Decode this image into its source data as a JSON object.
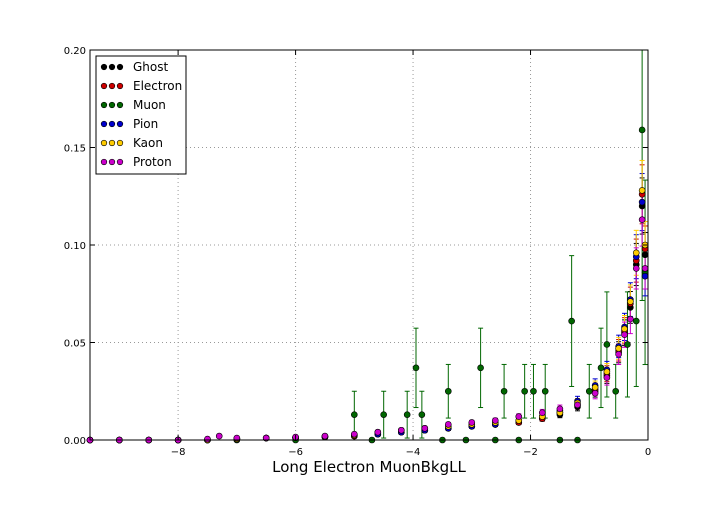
{
  "chart_data": {
    "type": "scatter",
    "title": "",
    "xlabel": "Long Electron MuonBkgLL",
    "ylabel": "",
    "xlim": [
      -9.5,
      0
    ],
    "ylim": [
      0,
      0.2
    ],
    "x_ticks": [
      -8,
      -6,
      -4,
      -2,
      0
    ],
    "x_tick_labels": [
      "−8",
      "−6",
      "−4",
      "−2",
      "0"
    ],
    "y_ticks": [
      0,
      0.05,
      0.1,
      0.15,
      0.2
    ],
    "y_tick_labels": [
      "0.00",
      "0.05",
      "0.10",
      "0.15",
      "0.20"
    ],
    "grid": true,
    "legend_position": "top-left",
    "series": [
      {
        "name": "Ghost",
        "color": "#000000",
        "points": [
          [
            -9.5,
            0
          ],
          [
            -9.0,
            0
          ],
          [
            -8.5,
            0
          ],
          [
            -8.0,
            0
          ],
          [
            -7.5,
            0
          ],
          [
            -7.0,
            0.0005
          ],
          [
            -6.5,
            0.001
          ],
          [
            -6.0,
            0.001
          ],
          [
            -5.5,
            0.0015
          ],
          [
            -5.0,
            0.002
          ],
          [
            -4.6,
            0.003
          ],
          [
            -4.2,
            0.004
          ],
          [
            -3.8,
            0.005
          ],
          [
            -3.4,
            0.006
          ],
          [
            -3.0,
            0.007
          ],
          [
            -2.6,
            0.008
          ],
          [
            -2.2,
            0.009
          ],
          [
            -1.8,
            0.011
          ],
          [
            -1.5,
            0.013
          ],
          [
            -1.2,
            0.017
          ],
          [
            -0.9,
            0.025
          ],
          [
            -0.7,
            0.033
          ],
          [
            -0.5,
            0.045
          ],
          [
            -0.4,
            0.055
          ],
          [
            -0.3,
            0.068
          ],
          [
            -0.2,
            0.09
          ],
          [
            -0.1,
            0.12
          ],
          [
            -0.05,
            0.095
          ]
        ]
      },
      {
        "name": "Electron",
        "color": "#cc0000",
        "points": [
          [
            -9.5,
            0
          ],
          [
            -9.0,
            0
          ],
          [
            -8.5,
            0
          ],
          [
            -8.0,
            0
          ],
          [
            -7.5,
            0
          ],
          [
            -7.0,
            0.0005
          ],
          [
            -6.5,
            0.001
          ],
          [
            -6.0,
            0.0012
          ],
          [
            -5.5,
            0.0015
          ],
          [
            -5.0,
            0.002
          ],
          [
            -4.6,
            0.003
          ],
          [
            -4.2,
            0.004
          ],
          [
            -3.8,
            0.005
          ],
          [
            -3.4,
            0.006
          ],
          [
            -3.0,
            0.007
          ],
          [
            -2.6,
            0.008
          ],
          [
            -2.2,
            0.009
          ],
          [
            -1.8,
            0.011
          ],
          [
            -1.5,
            0.014
          ],
          [
            -1.2,
            0.018
          ],
          [
            -0.9,
            0.026
          ],
          [
            -0.7,
            0.034
          ],
          [
            -0.5,
            0.046
          ],
          [
            -0.4,
            0.056
          ],
          [
            -0.3,
            0.07
          ],
          [
            -0.2,
            0.092
          ],
          [
            -0.1,
            0.126
          ],
          [
            -0.05,
            0.098
          ]
        ]
      },
      {
        "name": "Muon",
        "color": "#006600",
        "points": [
          [
            -9.0,
            0
          ],
          [
            -8.0,
            0
          ],
          [
            -7.0,
            0
          ],
          [
            -6.0,
            0
          ],
          [
            -5.0,
            0.013
          ],
          [
            -4.7,
            0
          ],
          [
            -4.5,
            0.013
          ],
          [
            -4.1,
            0.013
          ],
          [
            -3.95,
            0.037
          ],
          [
            -3.85,
            0.013
          ],
          [
            -3.5,
            0
          ],
          [
            -3.4,
            0.025
          ],
          [
            -3.1,
            0
          ],
          [
            -2.85,
            0.037
          ],
          [
            -2.6,
            0
          ],
          [
            -2.45,
            0.025
          ],
          [
            -2.2,
            0
          ],
          [
            -2.1,
            0.025
          ],
          [
            -1.95,
            0.025
          ],
          [
            -1.75,
            0.025
          ],
          [
            -1.5,
            0
          ],
          [
            -1.3,
            0.061
          ],
          [
            -1.2,
            0
          ],
          [
            -1.0,
            0.025
          ],
          [
            -0.8,
            0.037
          ],
          [
            -0.7,
            0.049
          ],
          [
            -0.55,
            0.025
          ],
          [
            -0.35,
            0.049
          ],
          [
            -0.2,
            0.061
          ],
          [
            -0.1,
            0.159
          ],
          [
            -0.05,
            0.086
          ]
        ]
      },
      {
        "name": "Pion",
        "color": "#0000cc",
        "points": [
          [
            -9.5,
            0
          ],
          [
            -9.0,
            0
          ],
          [
            -8.5,
            0
          ],
          [
            -8.0,
            0
          ],
          [
            -7.5,
            0
          ],
          [
            -7.0,
            0.0005
          ],
          [
            -6.5,
            0.001
          ],
          [
            -6.0,
            0.0012
          ],
          [
            -5.5,
            0.0018
          ],
          [
            -5.0,
            0.0025
          ],
          [
            -4.6,
            0.003
          ],
          [
            -4.2,
            0.004
          ],
          [
            -3.8,
            0.005
          ],
          [
            -3.4,
            0.006
          ],
          [
            -3.0,
            0.007
          ],
          [
            -2.6,
            0.008
          ],
          [
            -2.2,
            0.01
          ],
          [
            -1.8,
            0.012
          ],
          [
            -1.5,
            0.015
          ],
          [
            -1.2,
            0.02
          ],
          [
            -0.9,
            0.028
          ],
          [
            -0.7,
            0.036
          ],
          [
            -0.5,
            0.048
          ],
          [
            -0.4,
            0.058
          ],
          [
            -0.3,
            0.072
          ],
          [
            -0.2,
            0.094
          ],
          [
            -0.1,
            0.122
          ],
          [
            -0.05,
            0.084
          ]
        ]
      },
      {
        "name": "Kaon",
        "color": "#ffcc00",
        "points": [
          [
            -9.5,
            0
          ],
          [
            -9.0,
            0
          ],
          [
            -8.5,
            0
          ],
          [
            -8.0,
            0
          ],
          [
            -7.5,
            0
          ],
          [
            -7.0,
            0.0005
          ],
          [
            -6.5,
            0.001
          ],
          [
            -6.0,
            0.0012
          ],
          [
            -5.5,
            0.0018
          ],
          [
            -5.0,
            0.0025
          ],
          [
            -4.6,
            0.004
          ],
          [
            -4.2,
            0.005
          ],
          [
            -3.8,
            0.006
          ],
          [
            -3.4,
            0.007
          ],
          [
            -3.0,
            0.008
          ],
          [
            -2.6,
            0.009
          ],
          [
            -2.2,
            0.01
          ],
          [
            -1.8,
            0.012
          ],
          [
            -1.5,
            0.014
          ],
          [
            -1.2,
            0.019
          ],
          [
            -0.9,
            0.027
          ],
          [
            -0.7,
            0.035
          ],
          [
            -0.5,
            0.047
          ],
          [
            -0.4,
            0.057
          ],
          [
            -0.3,
            0.071
          ],
          [
            -0.2,
            0.096
          ],
          [
            -0.1,
            0.128
          ],
          [
            -0.05,
            0.1
          ]
        ]
      },
      {
        "name": "Proton",
        "color": "#cc00cc",
        "points": [
          [
            -9.5,
            0
          ],
          [
            -9.0,
            0
          ],
          [
            -8.5,
            0
          ],
          [
            -8.0,
            0
          ],
          [
            -7.5,
            0.0005
          ],
          [
            -7.3,
            0.002
          ],
          [
            -7.0,
            0.001
          ],
          [
            -6.5,
            0.001
          ],
          [
            -6.0,
            0.0015
          ],
          [
            -5.5,
            0.002
          ],
          [
            -5.0,
            0.003
          ],
          [
            -4.6,
            0.004
          ],
          [
            -4.2,
            0.005
          ],
          [
            -3.8,
            0.006
          ],
          [
            -3.4,
            0.008
          ],
          [
            -3.0,
            0.009
          ],
          [
            -2.6,
            0.01
          ],
          [
            -2.2,
            0.012
          ],
          [
            -1.8,
            0.014
          ],
          [
            -1.5,
            0.016
          ],
          [
            -1.2,
            0.018
          ],
          [
            -0.9,
            0.024
          ],
          [
            -0.7,
            0.032
          ],
          [
            -0.5,
            0.044
          ],
          [
            -0.4,
            0.054
          ],
          [
            -0.3,
            0.062
          ],
          [
            -0.2,
            0.088
          ],
          [
            -0.1,
            0.113
          ],
          [
            -0.05,
            0.088
          ]
        ]
      }
    ]
  }
}
